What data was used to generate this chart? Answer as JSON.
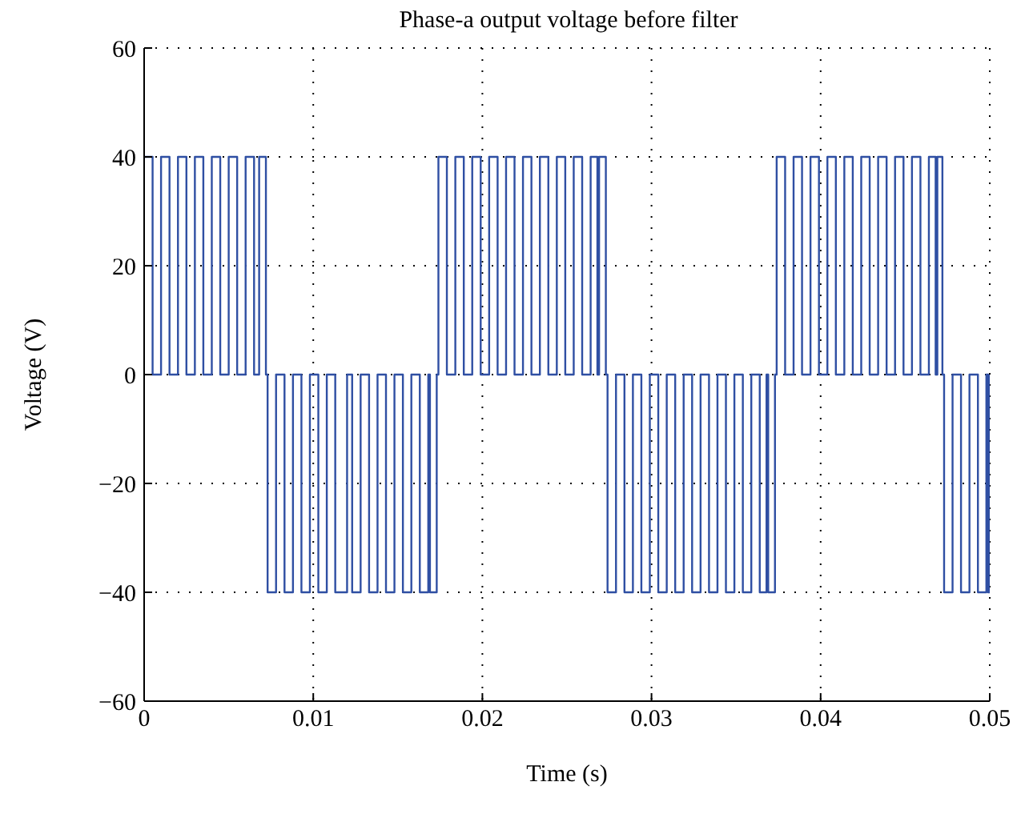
{
  "chart_data": {
    "type": "step",
    "title": "Phase-a output voltage before filter",
    "xlabel": "Time (s)",
    "ylabel": "Voltage (V)",
    "xlim": [
      0,
      0.05
    ],
    "xticks": [
      0,
      0.01,
      0.02,
      0.03,
      0.04,
      0.05
    ],
    "ylim": [
      -60,
      60
    ],
    "yticks": [
      {
        "value": -60,
        "label": "−60"
      },
      {
        "value": -40,
        "label": "−40"
      },
      {
        "value": -20,
        "label": "−20"
      },
      0,
      20,
      40,
      60
    ],
    "grid": true,
    "line_style": "solid",
    "marker": "none",
    "series": [
      {
        "color": "#2f4fa3",
        "x": [
          0,
          0.0005,
          0.001,
          0.0015,
          0.002,
          0.0025,
          0.003,
          0.0035,
          0.004,
          0.0045,
          0.005,
          0.0055,
          0.006,
          0.0065,
          0.0068,
          0.0072,
          0.0073,
          0.0078,
          0.0083,
          0.0088,
          0.0093,
          0.0098,
          0.0103,
          0.0108,
          0.0113,
          0.012,
          0.0123,
          0.0128,
          0.0133,
          0.0138,
          0.0143,
          0.0148,
          0.0153,
          0.0158,
          0.0163,
          0.0168,
          0.0169,
          0.0173,
          0.0174,
          0.0179,
          0.0184,
          0.0189,
          0.0194,
          0.0199,
          0.0204,
          0.0209,
          0.0214,
          0.0219,
          0.0224,
          0.0229,
          0.0234,
          0.0239,
          0.0244,
          0.0249,
          0.0254,
          0.0259,
          0.0264,
          0.0268,
          0.0269,
          0.0273,
          0.0274,
          0.0279,
          0.0284,
          0.0289,
          0.0294,
          0.0299,
          0.0304,
          0.0309,
          0.0314,
          0.0319,
          0.0324,
          0.0329,
          0.0334,
          0.0339,
          0.0344,
          0.0349,
          0.0354,
          0.0359,
          0.0364,
          0.0368,
          0.0369,
          0.0373,
          0.0374,
          0.0379,
          0.0384,
          0.0389,
          0.0394,
          0.0399,
          0.0404,
          0.0409,
          0.0414,
          0.0419,
          0.0424,
          0.0429,
          0.0434,
          0.0439,
          0.0444,
          0.0449,
          0.0454,
          0.0459,
          0.0464,
          0.0468,
          0.0469,
          0.0472,
          0.0473,
          0.0478,
          0.0483,
          0.0488,
          0.0493,
          0.0498,
          0.0499,
          0.05
        ],
        "values": [
          40,
          0,
          40,
          0,
          40,
          0,
          40,
          0,
          40,
          0,
          40,
          0,
          40,
          0,
          40,
          0,
          -40,
          0,
          -40,
          0,
          -40,
          0,
          -40,
          0,
          -40,
          0,
          -40,
          0,
          -40,
          0,
          -40,
          0,
          -40,
          0,
          -40,
          0,
          -40,
          0,
          40,
          0,
          40,
          0,
          40,
          0,
          40,
          0,
          40,
          0,
          40,
          0,
          40,
          0,
          40,
          0,
          40,
          0,
          40,
          0,
          40,
          0,
          -40,
          0,
          -40,
          0,
          -40,
          0,
          -40,
          0,
          -40,
          0,
          -40,
          0,
          -40,
          0,
          -40,
          0,
          -40,
          0,
          -40,
          0,
          -40,
          0,
          40,
          0,
          40,
          0,
          40,
          0,
          40,
          0,
          40,
          0,
          40,
          0,
          40,
          0,
          40,
          0,
          40,
          0,
          40,
          0,
          40,
          0,
          -40,
          0,
          -40,
          0,
          -40,
          0,
          -40,
          0
        ]
      }
    ]
  }
}
